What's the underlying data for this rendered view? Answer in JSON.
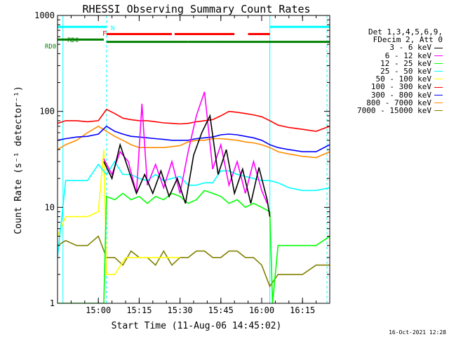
{
  "chart_data": {
    "type": "line",
    "title": "RHESSI Observing Summary Count Rates",
    "xlabel": "Start Time (11-Aug-06 14:45:02)",
    "ylabel": "Count Rate (s⁻¹ detector⁻¹)",
    "y_scale": "log",
    "ylim": [
      1,
      1000
    ],
    "xlim": [
      "14:45",
      "16:25"
    ],
    "x_ticks": [
      "15:00",
      "15:15",
      "15:30",
      "15:45",
      "16:00",
      "16:15"
    ],
    "y_ticks": [
      {
        "value": 1,
        "label": "1"
      },
      {
        "value": 10,
        "label": "10"
      },
      {
        "value": 100,
        "label": "100"
      },
      {
        "value": 1000,
        "label": "1000"
      }
    ],
    "legend_header": [
      "Det 1,3,4,5,6,9,",
      "FDecim 2, Att 0"
    ],
    "legend_position": "right",
    "flags": [
      {
        "name": "N",
        "color": "#00ffff",
        "level": 760,
        "segments": [
          [
            "14:45",
            "15:03"
          ],
          [
            "16:03",
            "16:25"
          ]
        ]
      },
      {
        "name": "F",
        "color": "#ff0000",
        "level": 640,
        "segments": [
          [
            "15:03",
            "15:27"
          ],
          [
            "15:28",
            "15:50"
          ],
          [
            "15:55",
            "16:03"
          ]
        ]
      },
      {
        "name": "RD0",
        "color": "#008000",
        "level": 560,
        "segments": [
          [
            "14:45",
            "15:02"
          ]
        ]
      },
      {
        "name": "",
        "color": "#008000",
        "level": 530,
        "segments": [
          [
            "15:03",
            "15:33"
          ],
          [
            "15:33",
            "15:43"
          ],
          [
            "15:43",
            "16:25"
          ]
        ]
      }
    ],
    "vlines": [
      {
        "x": "14:47",
        "color": "#00ffff",
        "dashed": false
      },
      {
        "x": "15:03",
        "color": "#00ffff",
        "dashed": true
      },
      {
        "x": "16:03",
        "color": "#00ffff",
        "dashed": false
      },
      {
        "x": "16:24",
        "color": "#00ffff",
        "dashed": true
      }
    ],
    "series": [
      {
        "name": "3 - 6 keV",
        "color": "#000000",
        "x": [
          "15:02",
          "15:05",
          "15:08",
          "15:11",
          "15:14",
          "15:17",
          "15:20",
          "15:23",
          "15:26",
          "15:29",
          "15:32",
          "15:35",
          "15:38",
          "15:41",
          "15:44",
          "15:47",
          "15:50",
          "15:53",
          "15:56",
          "15:59",
          "16:02",
          "16:03"
        ],
        "y": [
          30,
          20,
          45,
          25,
          14,
          22,
          14,
          24,
          13,
          20,
          11,
          35,
          60,
          90,
          22,
          40,
          14,
          25,
          11,
          26,
          12,
          8
        ]
      },
      {
        "name": "6 - 12 keV",
        "color": "#ff00ff",
        "x": [
          "15:02",
          "15:05",
          "15:08",
          "15:11",
          "15:14",
          "15:16",
          "15:18",
          "15:21",
          "15:24",
          "15:27",
          "15:30",
          "15:33",
          "15:36",
          "15:39",
          "15:42",
          "15:45",
          "15:48",
          "15:51",
          "15:54",
          "15:57",
          "16:00",
          "16:02"
        ],
        "y": [
          32,
          22,
          38,
          30,
          14,
          120,
          17,
          28,
          16,
          30,
          14,
          38,
          90,
          160,
          25,
          45,
          17,
          30,
          14,
          30,
          15,
          11
        ]
      },
      {
        "name": "12 - 25 keV",
        "color": "#00ff00",
        "x": [
          "14:45",
          "15:02",
          "15:03",
          "15:06",
          "15:09",
          "15:12",
          "15:15",
          "15:18",
          "15:21",
          "15:24",
          "15:27",
          "15:30",
          "15:33",
          "15:36",
          "15:39",
          "15:42",
          "15:45",
          "15:48",
          "15:51",
          "15:54",
          "15:57",
          "16:00",
          "16:03",
          "16:04",
          "16:06",
          "16:10",
          "16:15",
          "16:20",
          "16:25"
        ],
        "y": [
          1,
          1,
          13,
          12,
          14,
          12,
          13,
          11,
          13,
          12,
          14,
          13,
          11,
          12,
          15,
          14,
          13,
          11,
          12,
          10,
          11,
          10,
          9,
          1,
          4,
          4,
          4,
          4,
          5
        ]
      },
      {
        "name": "25 - 50 keV",
        "color": "#00ffff",
        "x": [
          "14:45",
          "14:48",
          "14:52",
          "14:56",
          "15:00",
          "15:03",
          "15:06",
          "15:09",
          "15:12",
          "15:15",
          "15:18",
          "15:21",
          "15:24",
          "15:27",
          "15:30",
          "15:33",
          "15:36",
          "15:39",
          "15:42",
          "15:45",
          "15:48",
          "15:51",
          "15:54",
          "15:57",
          "16:00",
          "16:03",
          "16:06",
          "16:10",
          "16:15",
          "16:20",
          "16:25"
        ],
        "y": [
          3,
          19,
          19,
          19,
          28,
          22,
          30,
          22,
          22,
          20,
          19,
          22,
          19,
          20,
          21,
          17,
          17,
          18,
          18,
          24,
          24,
          22,
          21,
          20,
          19,
          19,
          18,
          16,
          15,
          15,
          16
        ]
      },
      {
        "name": "50 - 100 keV",
        "color": "#ffff00",
        "x": [
          "14:45",
          "14:48",
          "14:52",
          "14:56",
          "15:00",
          "15:02",
          "15:03",
          "15:06",
          "15:10",
          "15:14",
          "15:18",
          "15:22",
          "15:26",
          "15:30"
        ],
        "y": [
          5,
          8,
          8,
          8,
          9,
          40,
          2,
          2,
          3,
          3,
          3,
          3,
          3,
          3
        ]
      },
      {
        "name": "100 - 300 keV",
        "color": "#ff0000",
        "x": [
          "14:45",
          "14:48",
          "14:52",
          "14:56",
          "15:00",
          "15:03",
          "15:06",
          "15:09",
          "15:12",
          "15:15",
          "15:18",
          "15:21",
          "15:24",
          "15:27",
          "15:30",
          "15:33",
          "15:36",
          "15:39",
          "15:42",
          "15:45",
          "15:48",
          "15:51",
          "15:54",
          "15:57",
          "16:00",
          "16:03",
          "16:06",
          "16:10",
          "16:15",
          "16:20",
          "16:25"
        ],
        "y": [
          75,
          80,
          80,
          78,
          80,
          105,
          95,
          85,
          82,
          80,
          80,
          78,
          76,
          75,
          74,
          75,
          78,
          80,
          82,
          90,
          100,
          98,
          95,
          92,
          88,
          80,
          72,
          68,
          65,
          62,
          70
        ]
      },
      {
        "name": "300 - 800 keV",
        "color": "#0000ff",
        "x": [
          "14:45",
          "14:48",
          "14:52",
          "14:56",
          "15:00",
          "15:03",
          "15:06",
          "15:09",
          "15:12",
          "15:15",
          "15:18",
          "15:21",
          "15:24",
          "15:27",
          "15:30",
          "15:33",
          "15:36",
          "15:39",
          "15:42",
          "15:45",
          "15:48",
          "15:51",
          "15:54",
          "15:57",
          "16:00",
          "16:03",
          "16:06",
          "16:10",
          "16:15",
          "16:20",
          "16:25"
        ],
        "y": [
          50,
          52,
          54,
          55,
          58,
          70,
          62,
          58,
          55,
          54,
          53,
          52,
          51,
          50,
          50,
          50,
          52,
          53,
          54,
          57,
          58,
          57,
          55,
          53,
          50,
          45,
          42,
          40,
          38,
          38,
          45
        ]
      },
      {
        "name": "800 - 7000 keV",
        "color": "#ff8c00",
        "x": [
          "14:45",
          "14:48",
          "14:52",
          "14:56",
          "15:00",
          "15:03",
          "15:06",
          "15:09",
          "15:12",
          "15:15",
          "15:18",
          "15:21",
          "15:24",
          "15:27",
          "15:30",
          "15:33",
          "15:36",
          "15:39",
          "15:42",
          "15:45",
          "15:48",
          "15:51",
          "15:54",
          "15:57",
          "16:00",
          "16:03",
          "16:06",
          "16:10",
          "16:15",
          "16:20",
          "16:25"
        ],
        "y": [
          40,
          45,
          50,
          60,
          70,
          62,
          55,
          50,
          45,
          42,
          42,
          42,
          42,
          43,
          44,
          48,
          50,
          50,
          52,
          52,
          51,
          50,
          48,
          47,
          45,
          42,
          38,
          36,
          34,
          33,
          38
        ]
      },
      {
        "name": "7000 - 15000 keV",
        "color": "#808000",
        "x": [
          "14:45",
          "14:48",
          "14:52",
          "14:56",
          "15:00",
          "15:03",
          "15:06",
          "15:09",
          "15:12",
          "15:15",
          "15:18",
          "15:21",
          "15:24",
          "15:27",
          "15:30",
          "15:33",
          "15:36",
          "15:39",
          "15:42",
          "15:45",
          "15:48",
          "15:51",
          "15:54",
          "15:57",
          "16:00",
          "16:03",
          "16:06",
          "16:10",
          "16:15",
          "16:20",
          "16:25"
        ],
        "y": [
          4,
          4.5,
          4,
          4,
          5,
          3,
          3,
          2.5,
          3.5,
          3,
          3,
          2.5,
          3.5,
          2.5,
          3,
          3,
          3.5,
          3.5,
          3,
          3,
          3.5,
          3.5,
          3,
          3,
          2.5,
          1.5,
          2,
          2,
          2,
          2.5,
          2.5
        ]
      }
    ]
  },
  "footer": "16-Oct-2021 12:28"
}
